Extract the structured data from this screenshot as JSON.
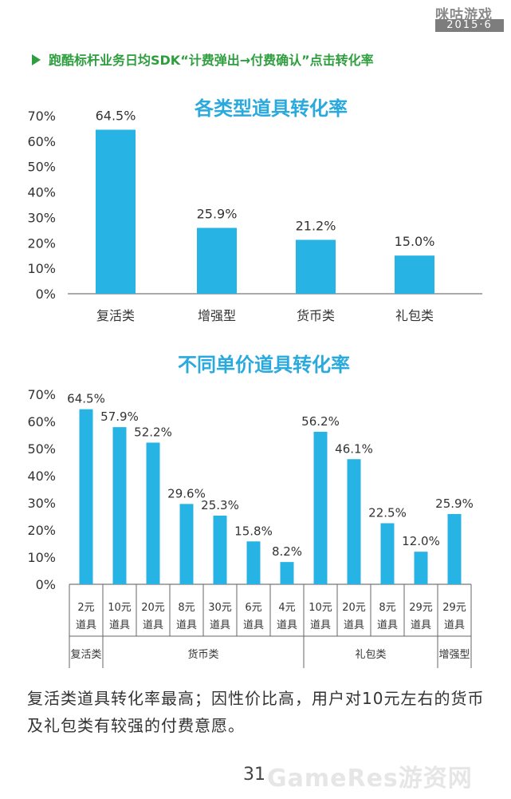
{
  "brand": {
    "logo_text": "咪咕游戏",
    "date": "2015·6"
  },
  "heading": "跑酷标杆业务日均SDK“计费弹出→付费确认”点击转化率",
  "colors": {
    "bar": "#27b3e3",
    "title": "#2aa9dd",
    "heading": "#2e9e3e",
    "axis": "#333333"
  },
  "chart_data": [
    {
      "type": "bar",
      "title": "各类型道具转化率",
      "categories": [
        "复活类",
        "增强型",
        "货币类",
        "礼包类"
      ],
      "values": [
        64.5,
        25.9,
        21.2,
        15.0
      ],
      "value_labels": [
        "64.5%",
        "25.9%",
        "21.2%",
        "15.0%"
      ],
      "y_ticks": [
        "0%",
        "10%",
        "20%",
        "30%",
        "40%",
        "50%",
        "60%",
        "70%"
      ],
      "ylim": [
        0,
        70
      ],
      "unit": "%"
    },
    {
      "type": "bar",
      "title": "不同单价道具转化率",
      "categories": [
        {
          "price": "2元",
          "item": "道具"
        },
        {
          "price": "10元",
          "item": "道具"
        },
        {
          "price": "20元",
          "item": "道具"
        },
        {
          "price": "8元",
          "item": "道具"
        },
        {
          "price": "30元",
          "item": "道具"
        },
        {
          "price": "6元",
          "item": "道具"
        },
        {
          "price": "4元",
          "item": "道具"
        },
        {
          "price": "10元",
          "item": "道具"
        },
        {
          "price": "20元",
          "item": "道具"
        },
        {
          "price": "8元",
          "item": "道具"
        },
        {
          "price": "29元",
          "item": "道具"
        },
        {
          "price": "29元",
          "item": "道具"
        }
      ],
      "values": [
        64.5,
        57.9,
        52.2,
        29.6,
        25.3,
        15.8,
        8.2,
        56.2,
        46.1,
        22.5,
        12.0,
        25.9
      ],
      "value_labels": [
        "64.5%",
        "57.9%",
        "52.2%",
        "29.6%",
        "25.3%",
        "15.8%",
        "8.2%",
        "56.2%",
        "46.1%",
        "22.5%",
        "12.0%",
        "25.9%"
      ],
      "groups": [
        {
          "name": "复活类",
          "start": 0,
          "count": 1
        },
        {
          "name": "货币类",
          "start": 1,
          "count": 6
        },
        {
          "name": "礼包类",
          "start": 7,
          "count": 4
        },
        {
          "name": "增强型",
          "start": 11,
          "count": 1
        }
      ],
      "y_ticks": [
        "0%",
        "10%",
        "20%",
        "30%",
        "40%",
        "50%",
        "60%",
        "70%"
      ],
      "ylim": [
        0,
        70
      ],
      "unit": "%"
    }
  ],
  "conclusion": "复活类道具转化率最高；因性价比高，用户对10元左右的货币及礼包类有较强的付费意愿。",
  "page_number": "31",
  "watermark": "GameRes游资网"
}
